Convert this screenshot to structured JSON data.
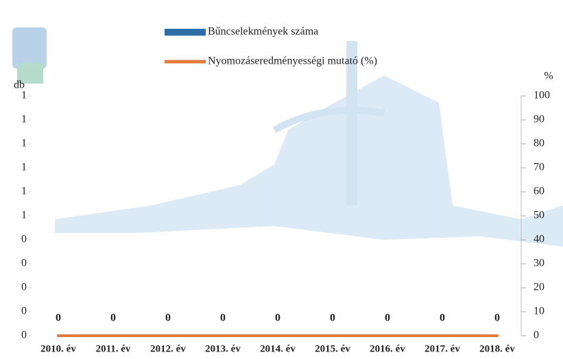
{
  "chart_data": {
    "type": "bar",
    "categories": [
      "2010. év",
      "2011. év",
      "2012. év",
      "2013. év",
      "2014. év",
      "2015. év",
      "2016. év",
      "2017. év",
      "2018. év"
    ],
    "series": [
      {
        "name": "Bűncselekmények száma",
        "color": "#2e6fa8",
        "type": "bar",
        "values": [
          0,
          0,
          0,
          0,
          0,
          0,
          0,
          0,
          0
        ]
      },
      {
        "name": "Nyomozáseredményességi mutató (%)",
        "color": "#e07b3c",
        "type": "line",
        "axis": "y2",
        "values": [
          0,
          0,
          0,
          0,
          0,
          0,
          0,
          0,
          0
        ]
      }
    ],
    "ylabel": "db",
    "y2label": "%",
    "ylim": [
      0,
      1
    ],
    "yticks": [
      {
        "value": 0,
        "label": "0"
      },
      {
        "value": 0.1,
        "label": "0"
      },
      {
        "value": 0.2,
        "label": "0"
      },
      {
        "value": 0.3,
        "label": "0"
      },
      {
        "value": 0.4,
        "label": "0"
      },
      {
        "value": 0.5,
        "label": "1"
      },
      {
        "value": 0.6,
        "label": "1"
      },
      {
        "value": 0.7,
        "label": "1"
      },
      {
        "value": 0.8,
        "label": "1"
      },
      {
        "value": 0.9,
        "label": "1"
      },
      {
        "value": 1,
        "label": "1"
      }
    ],
    "y2lim": [
      0,
      100
    ],
    "y2ticks": [
      0,
      10,
      20,
      30,
      40,
      50,
      60,
      70,
      80,
      90,
      100
    ]
  }
}
